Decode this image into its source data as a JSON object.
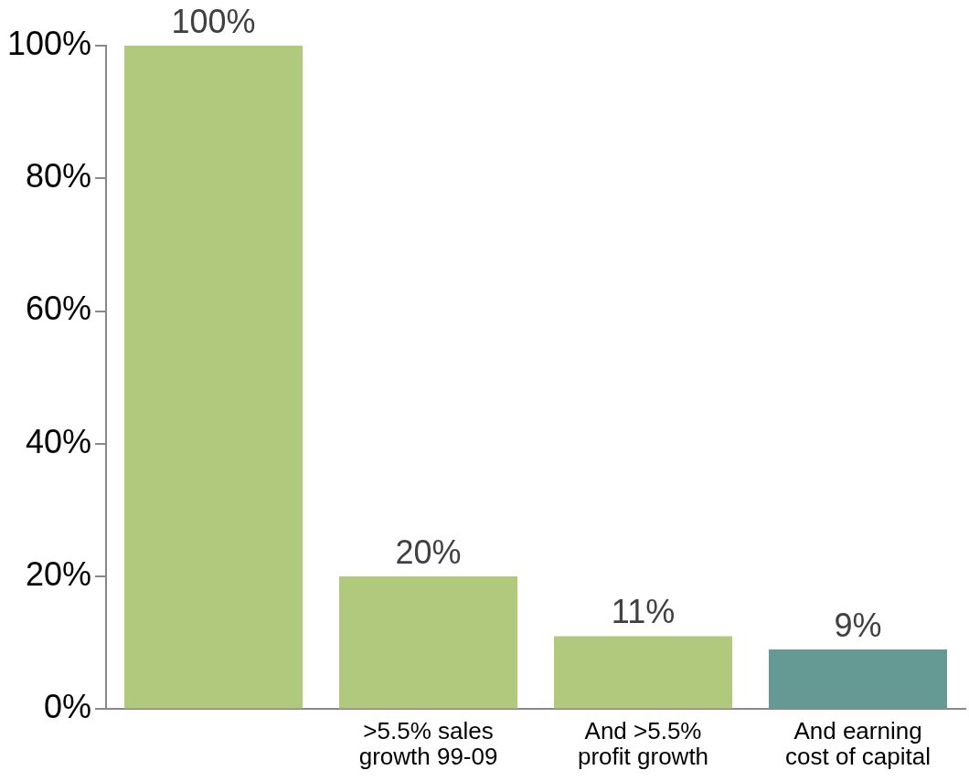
{
  "chart_data": {
    "type": "bar",
    "categories": [
      null,
      ">5.5% sales growth 99-09",
      "And >5.5% profit growth",
      "And earning cost of capital"
    ],
    "values": [
      100,
      20,
      11,
      9
    ],
    "colors": [
      "#b0c97c",
      "#b0c97c",
      "#b0c97c",
      "#659a94"
    ],
    "value_labels": [
      "100%",
      "20%",
      "11%",
      "9%"
    ],
    "ylim": [
      0,
      100
    ],
    "yticks": [
      {
        "value": 0,
        "label": "0%"
      },
      {
        "value": 20,
        "label": "20%"
      },
      {
        "value": 40,
        "label": "40%"
      },
      {
        "value": 60,
        "label": "60%"
      },
      {
        "value": 80,
        "label": "80%"
      },
      {
        "value": 100,
        "label": "100%"
      }
    ],
    "grid": false,
    "legend": false
  }
}
